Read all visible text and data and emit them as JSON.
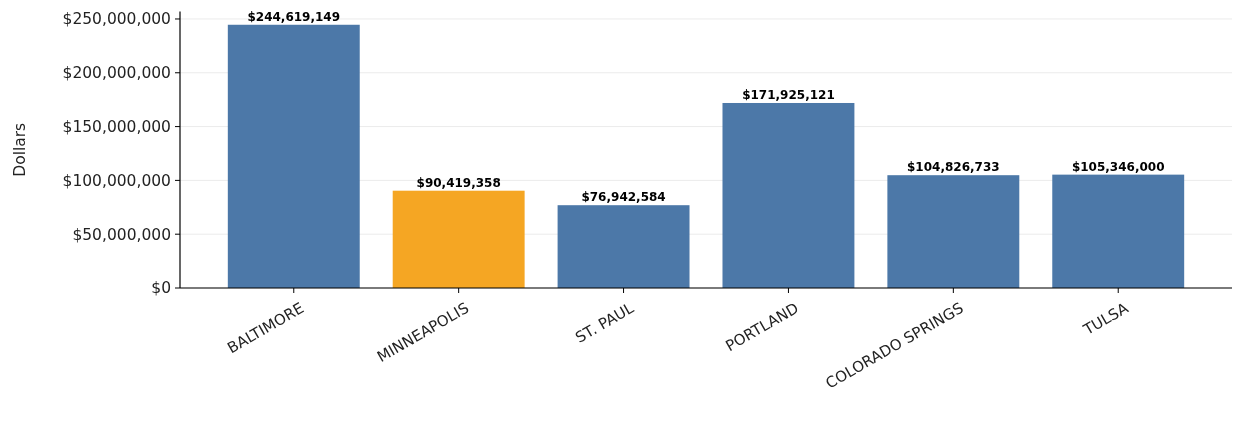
{
  "chart_data": {
    "type": "bar",
    "ylabel": "Dollars",
    "categories": [
      "BALTIMORE",
      "MINNEAPOLIS",
      "ST. PAUL",
      "PORTLAND",
      "COLORADO SPRINGS",
      "TULSA"
    ],
    "values": [
      244619149,
      90419358,
      76942584,
      171925121,
      104826733,
      105346000
    ],
    "colors": [
      "#4c78a8",
      "#f5a623",
      "#4c78a8",
      "#4c78a8",
      "#4c78a8",
      "#4c78a8"
    ],
    "value_labels": [
      "$244,619,149",
      "$90,419,358",
      "$76,942,584",
      "$171,925,121",
      "$104,826,733",
      "$105,346,000"
    ],
    "ylim": [
      0,
      256850000
    ],
    "yticks": [
      {
        "value": 0,
        "label": "$0"
      },
      {
        "value": 50000000,
        "label": "$50,000,000"
      },
      {
        "value": 100000000,
        "label": "$100,000,000"
      },
      {
        "value": 150000000,
        "label": "$150,000,000"
      },
      {
        "value": 200000000,
        "label": "$200,000,000"
      },
      {
        "value": 250000000,
        "label": "$250,000,000"
      }
    ],
    "grid": "y"
  }
}
